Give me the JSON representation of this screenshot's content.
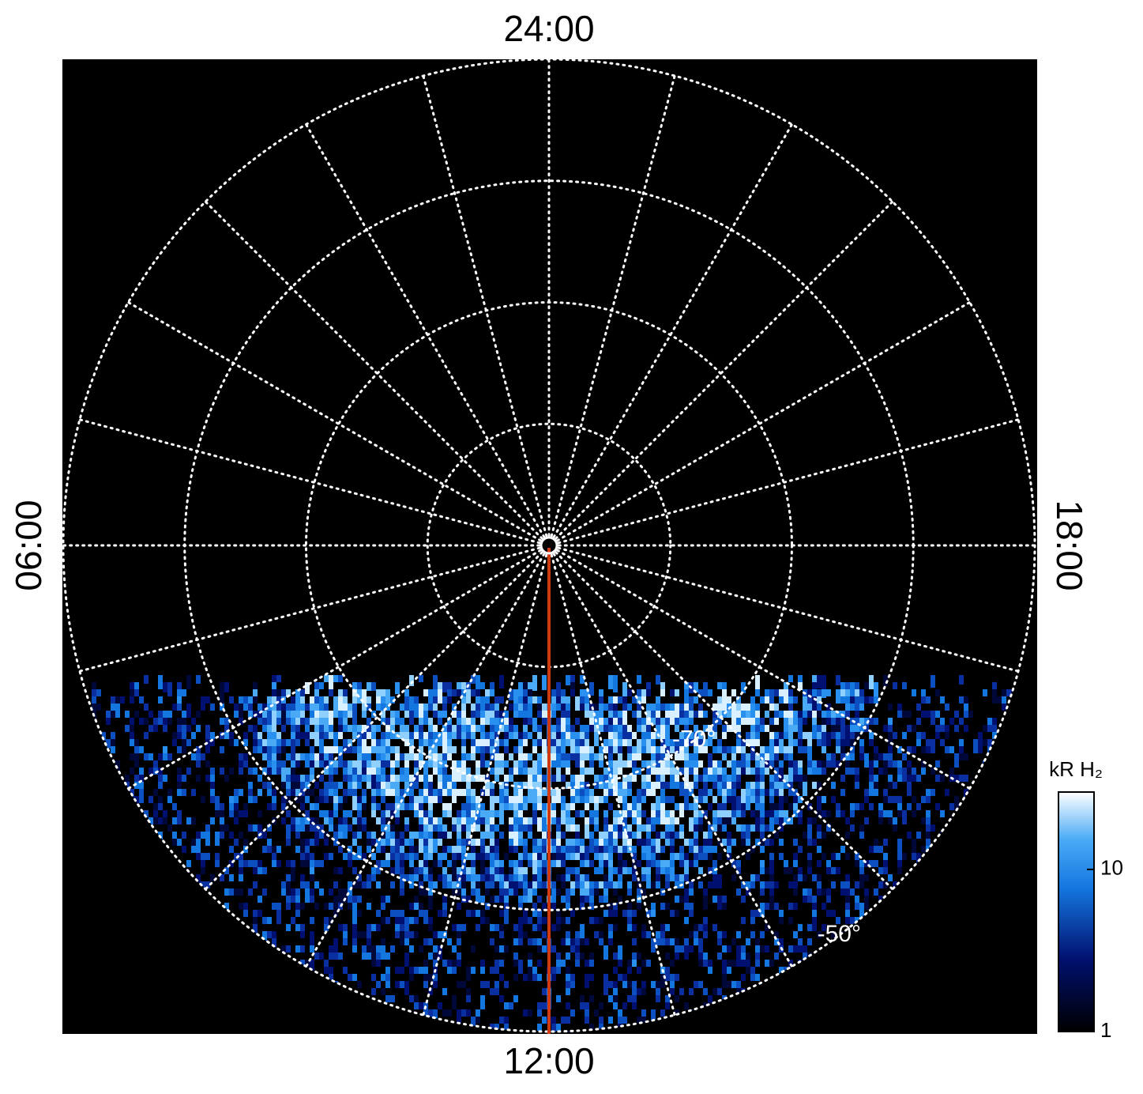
{
  "chart_data": {
    "type": "polar-map",
    "time_labels": {
      "top": "24:00",
      "bottom": "12:00",
      "left": "06:00",
      "right": "18:00"
    },
    "rlim": [
      -90,
      -50
    ],
    "rticks": [
      -80,
      -70,
      -60,
      -50
    ],
    "rtick_labels": [
      {
        "value": -70,
        "label": "-70°"
      },
      {
        "value": -50,
        "label": "-50°"
      }
    ],
    "meridian_hours": [
      0,
      1,
      2,
      3,
      4,
      5,
      6,
      7,
      8,
      9,
      10,
      11,
      12,
      13,
      14,
      15,
      16,
      17,
      18,
      19,
      20,
      21,
      22,
      23
    ],
    "colorbar": {
      "label": "kR H₂",
      "zlim": [
        1,
        30
      ],
      "ticks": [
        1,
        10
      ],
      "log": true
    }
  }
}
